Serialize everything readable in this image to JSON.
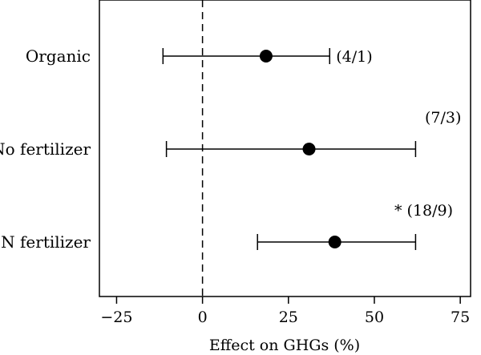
{
  "chart_data": {
    "type": "forest",
    "xlabel": "Effect on GHGs (%)",
    "xlim": [
      -30,
      78
    ],
    "xticks": [
      -25,
      0,
      25,
      50,
      75
    ],
    "xtick_labels": [
      "−25",
      "0",
      "25",
      "50",
      "75"
    ],
    "reference_line": 0,
    "grid": false,
    "categories": [
      "Organic",
      "No fertilizer",
      "N fertilizer"
    ],
    "estimates": [
      18.5,
      31,
      38.5
    ],
    "ci_lower": [
      -11.5,
      -10.5,
      16
    ],
    "ci_upper": [
      37,
      62,
      62
    ],
    "annotations": [
      "(4/1)",
      "(7/3)",
      "* (18/9)"
    ]
  }
}
